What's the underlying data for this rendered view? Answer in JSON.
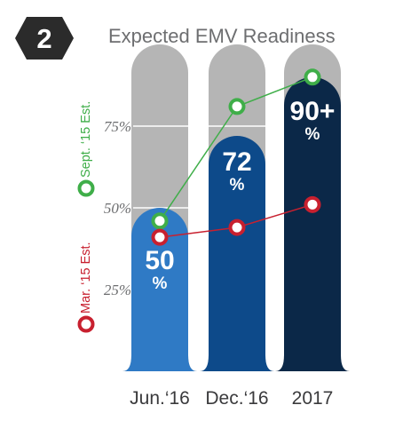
{
  "badge": "2",
  "chart_data": {
    "type": "bar",
    "title": "Expected EMV Readiness",
    "categories": [
      "Jun.‘16",
      "Dec.‘16",
      "2017"
    ],
    "values": [
      50,
      72,
      90
    ],
    "value_labels": [
      "50",
      "72",
      "90+"
    ],
    "value_unit": "%",
    "bar_colors": [
      "#2f7ac5",
      "#0d4a8a",
      "#0b2848"
    ],
    "background_bar_color": "#b5b5b5",
    "ylim": [
      0,
      100
    ],
    "yticks": [
      25,
      50,
      75
    ],
    "ytick_labels": [
      "25%",
      "50%",
      "75%"
    ],
    "grid": false,
    "series": [
      {
        "name": "Sept. ‘15 Est.",
        "color": "#3fae49",
        "values": [
          46,
          81,
          90
        ]
      },
      {
        "name": "Mar. ‘15 Est.",
        "color": "#c8202f",
        "values": [
          41,
          44,
          51
        ]
      }
    ],
    "legend_position": "left-vertical"
  }
}
